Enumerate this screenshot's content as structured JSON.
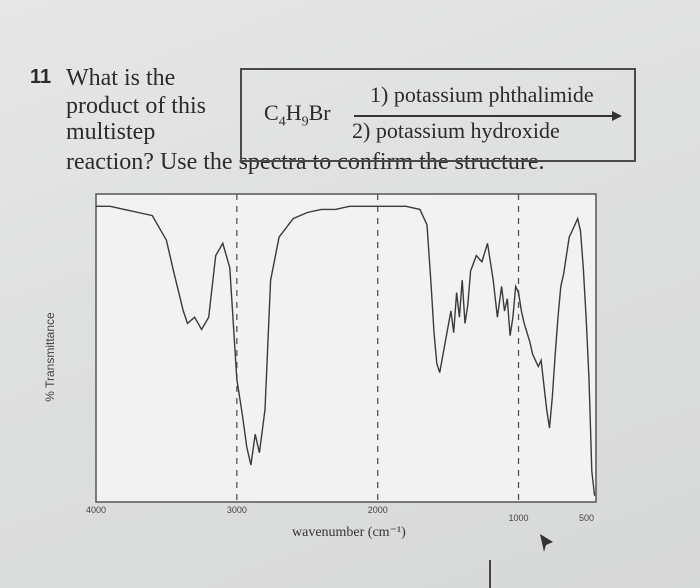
{
  "question": {
    "number": "11",
    "lines": [
      "What is the",
      "product of this",
      "multistep",
      "reaction? Use the spectra to confirm the structure."
    ]
  },
  "reaction": {
    "reactant_main": "C",
    "reactant_sub1": "4",
    "reactant_h": "H",
    "reactant_sub2": "9",
    "reactant_br": "Br",
    "step1": "1) potassium phthalimide",
    "step2": "2) potassium hydroxide"
  },
  "chart_data": {
    "type": "line",
    "title": "",
    "xlabel": "wavenumber (cm⁻¹)",
    "ylabel": "% Transmittance",
    "x_ticks": [
      "4000",
      "3000",
      "2000",
      "1000",
      "500"
    ],
    "xlim": [
      4000,
      450
    ],
    "ylim": [
      0,
      100
    ],
    "dashed_reference_lines_at": [
      3000,
      2000,
      1000
    ],
    "series": [
      {
        "x": [
          4000,
          3900,
          3800,
          3700,
          3600,
          3500,
          3450,
          3380,
          3350,
          3300,
          3250,
          3200,
          3150,
          3100,
          3050,
          3000,
          2960,
          2930,
          2900,
          2870,
          2840,
          2800,
          2760,
          2700,
          2600,
          2500,
          2400,
          2300,
          2200,
          2100,
          2000,
          1900,
          1800,
          1700,
          1650,
          1620,
          1600,
          1580,
          1560,
          1520,
          1480,
          1460,
          1440,
          1420,
          1400,
          1380,
          1360,
          1340,
          1300,
          1260,
          1220,
          1180,
          1150,
          1120,
          1100,
          1080,
          1060,
          1040,
          1020,
          1000,
          980,
          960,
          940,
          920,
          900,
          880,
          860,
          840,
          820,
          800,
          780,
          760,
          740,
          720,
          700,
          680,
          660,
          640,
          620,
          600,
          580,
          560,
          540,
          520,
          500,
          480,
          460
        ],
        "y": [
          96,
          96,
          95,
          94,
          93,
          85,
          75,
          62,
          58,
          60,
          56,
          60,
          80,
          84,
          76,
          40,
          28,
          18,
          12,
          22,
          16,
          30,
          72,
          86,
          92,
          94,
          95,
          95,
          96,
          96,
          96,
          96,
          96,
          95,
          90,
          70,
          55,
          45,
          42,
          52,
          62,
          55,
          68,
          60,
          72,
          58,
          64,
          75,
          80,
          78,
          84,
          72,
          60,
          70,
          62,
          66,
          54,
          60,
          70,
          68,
          62,
          58,
          55,
          52,
          48,
          46,
          44,
          46,
          38,
          30,
          24,
          34,
          48,
          60,
          70,
          74,
          80,
          86,
          88,
          90,
          92,
          88,
          76,
          60,
          40,
          10,
          2
        ]
      }
    ]
  }
}
